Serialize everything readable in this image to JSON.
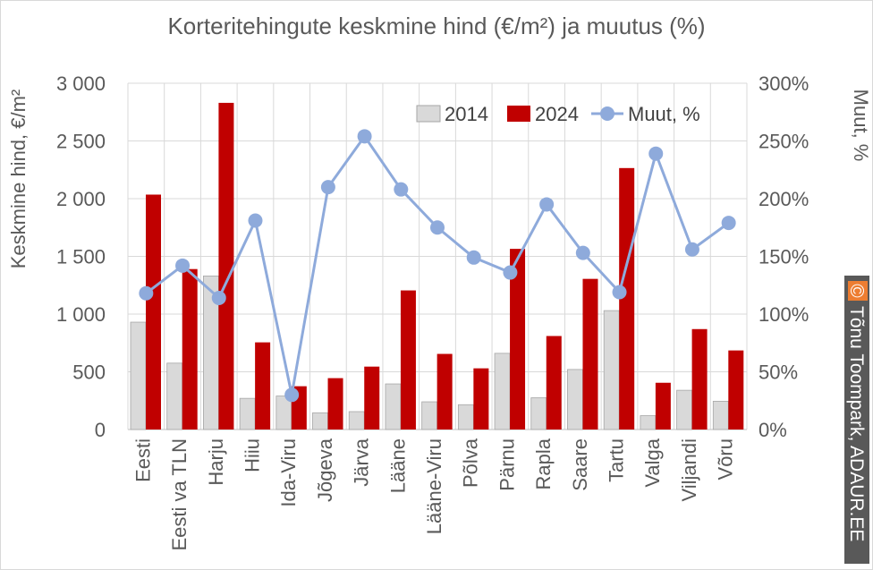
{
  "chart_data": {
    "type": "bar",
    "title": "Korteritehingute keskmine hind (€/m²) ja muutus (%)",
    "ylabel": "Keskmine hind, €/m²",
    "y2label": "Muut, %",
    "ylim": [
      0,
      3000
    ],
    "y2lim": [
      0,
      300
    ],
    "yticks": [
      "0",
      "500",
      "1 000",
      "1 500",
      "2 000",
      "2 500",
      "3 000"
    ],
    "y2ticks": [
      "0%",
      "50%",
      "100%",
      "150%",
      "200%",
      "250%",
      "300%"
    ],
    "categories": [
      "Eesti",
      "Eesti va TLN",
      "Harju",
      "Hiiu",
      "Ida-Viru",
      "Jõgeva",
      "Järva",
      "Lääne",
      "Lääne-Viru",
      "Põlva",
      "Pärnu",
      "Rapla",
      "Saare",
      "Tartu",
      "Valga",
      "Viljandi",
      "Võru"
    ],
    "series": [
      {
        "name": "2014",
        "type": "bar",
        "color": "#d9d9d9",
        "values": [
          930,
          575,
          1330,
          270,
          290,
          145,
          155,
          395,
          240,
          215,
          660,
          275,
          520,
          1030,
          120,
          340,
          245
        ]
      },
      {
        "name": "2024",
        "type": "bar",
        "color": "#c00000",
        "values": [
          2035,
          1390,
          2830,
          755,
          375,
          445,
          545,
          1205,
          655,
          530,
          1565,
          810,
          1305,
          2265,
          405,
          870,
          685
        ]
      },
      {
        "name": "Muut, %",
        "type": "line",
        "axis": "right",
        "color": "#8eaadb",
        "values": [
          118,
          142,
          114,
          181,
          30,
          210,
          254,
          208,
          175,
          149,
          136,
          195,
          153,
          119,
          239,
          156,
          179
        ]
      }
    ],
    "grid": true,
    "legend": "top-right"
  },
  "watermark": {
    "symbol": "©",
    "text": "Tõnu Toompark, ADAUR.EE"
  }
}
